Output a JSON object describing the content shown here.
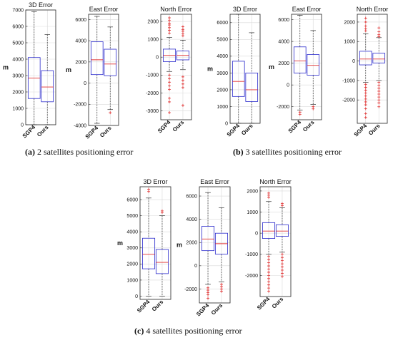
{
  "captions": [
    {
      "letter": "(a)",
      "text": " 2 satellites positioning error"
    },
    {
      "letter": "(b)",
      "text": " 3 satellites positioning error"
    },
    {
      "letter": "(c)",
      "text": " 4 satellites positioning error"
    }
  ],
  "colors": {
    "box": "#2a2acc",
    "median": "#e03030",
    "outlier": "#e03030",
    "grid": "#d9d9d9"
  },
  "chart_data": [
    {
      "group": "a",
      "type": "boxplot",
      "title": "3D Error",
      "ylabel": "m",
      "categories": [
        "SGP4",
        "Ours"
      ],
      "ylim": [
        0,
        7000
      ],
      "yticks": [
        0,
        1000,
        2000,
        3000,
        4000,
        5000,
        6000,
        7000
      ],
      "boxes": [
        {
          "min": 0,
          "q1": 1600,
          "median": 2850,
          "q3": 4100,
          "max": 6900,
          "outliers": []
        },
        {
          "min": 0,
          "q1": 1400,
          "median": 2300,
          "q3": 3300,
          "max": 5500,
          "outliers": []
        }
      ]
    },
    {
      "group": "a",
      "type": "boxplot",
      "title": "East Error",
      "ylabel": "m",
      "categories": [
        "SGP4",
        "Ours"
      ],
      "ylim": [
        -4000,
        6500
      ],
      "yticks": [
        -4000,
        -2000,
        0,
        2000,
        4000,
        6000
      ],
      "boxes": [
        {
          "min": -3800,
          "q1": 800,
          "median": 2200,
          "q3": 3900,
          "max": 6300,
          "outliers": []
        },
        {
          "min": -2500,
          "q1": 700,
          "median": 1800,
          "q3": 3200,
          "max": 5300,
          "outliers": [
            -2800
          ]
        }
      ]
    },
    {
      "group": "a",
      "type": "boxplot",
      "title": "North Error",
      "ylabel": "",
      "categories": [
        "SGP4",
        "Ours"
      ],
      "ylim": [
        -3500,
        2400
      ],
      "yticks": [
        -3000,
        -2000,
        -1000,
        0,
        1000,
        2000
      ],
      "boxes": [
        {
          "min": -800,
          "q1": -250,
          "median": 100,
          "q3": 450,
          "max": 1100,
          "outliers": [
            2200,
            2050,
            1900,
            1800,
            1650,
            1500,
            1350,
            -1000,
            -1200,
            -1400,
            -1600,
            -1800,
            -2300,
            -2500,
            -3100
          ]
        },
        {
          "min": -700,
          "q1": -150,
          "median": 100,
          "q3": 350,
          "max": 950,
          "outliers": [
            1700,
            1550,
            1450,
            1300,
            1200,
            -1100,
            -1300,
            -1500,
            -1700,
            -2700
          ]
        }
      ]
    },
    {
      "group": "b",
      "type": "boxplot",
      "title": "3D Error",
      "ylabel": "m",
      "categories": [
        "SGP4",
        "Ours"
      ],
      "ylim": [
        0,
        6500
      ],
      "yticks": [
        0,
        1000,
        2000,
        3000,
        4000,
        5000,
        6000
      ],
      "boxes": [
        {
          "min": 0,
          "q1": 1600,
          "median": 2500,
          "q3": 3700,
          "max": 6500,
          "outliers": []
        },
        {
          "min": 0,
          "q1": 1300,
          "median": 2000,
          "q3": 3000,
          "max": 5400,
          "outliers": []
        }
      ]
    },
    {
      "group": "b",
      "type": "boxplot",
      "title": "East Error",
      "ylabel": "m",
      "categories": [
        "SGP4",
        "Ours"
      ],
      "ylim": [
        -3200,
        6500
      ],
      "yticks": [
        -2000,
        0,
        2000,
        4000,
        6000
      ],
      "boxes": [
        {
          "min": -2300,
          "q1": 1100,
          "median": 2200,
          "q3": 3500,
          "max": 6400,
          "outliers": [
            -2500,
            -2700
          ]
        },
        {
          "min": -1800,
          "q1": 900,
          "median": 1800,
          "q3": 2800,
          "max": 5000,
          "outliers": [
            -2000,
            -2200
          ]
        }
      ]
    },
    {
      "group": "b",
      "type": "boxplot",
      "title": "North Error",
      "ylabel": "",
      "categories": [
        "SGP4",
        "Ours"
      ],
      "ylim": [
        -3200,
        2400
      ],
      "yticks": [
        -2000,
        -1000,
        0,
        1000,
        2000
      ],
      "boxes": [
        {
          "min": -1100,
          "q1": -200,
          "median": 100,
          "q3": 500,
          "max": 1400,
          "outliers": [
            2200,
            2000,
            1800,
            1650,
            1550,
            -1200,
            -1350,
            -1500,
            -1650,
            -1800,
            -1950,
            -2100,
            -2250,
            -2450,
            -2700,
            -2900
          ]
        },
        {
          "min": -1000,
          "q1": -100,
          "median": 100,
          "q3": 400,
          "max": 1200,
          "outliers": [
            1700,
            1500,
            1350,
            1250,
            -1100,
            -1250,
            -1400,
            -1550,
            -1700,
            -1850,
            -2000,
            -2150,
            -2350
          ]
        }
      ]
    },
    {
      "group": "c",
      "type": "boxplot",
      "title": "3D Error",
      "ylabel": "m",
      "categories": [
        "SGP4",
        "Ours"
      ],
      "ylim": [
        -200,
        6800
      ],
      "yticks": [
        0,
        1000,
        2000,
        3000,
        4000,
        5000,
        6000
      ],
      "boxes": [
        {
          "min": 0,
          "q1": 1700,
          "median": 2600,
          "q3": 3600,
          "max": 6100,
          "outliers": [
            6500,
            6650
          ]
        },
        {
          "min": 0,
          "q1": 1400,
          "median": 2100,
          "q3": 2900,
          "max": 5000,
          "outliers": [
            5200,
            5300
          ]
        }
      ]
    },
    {
      "group": "c",
      "type": "boxplot",
      "title": "East Error",
      "ylabel": "m",
      "categories": [
        "SGP4",
        "Ours"
      ],
      "ylim": [
        -3200,
        6800
      ],
      "yticks": [
        -2000,
        0,
        2000,
        4000,
        6000
      ],
      "boxes": [
        {
          "min": -1600,
          "q1": 1300,
          "median": 2300,
          "q3": 3400,
          "max": 6300,
          "outliers": [
            -1900,
            -2100,
            -2300,
            -2500,
            -2800
          ]
        },
        {
          "min": -1400,
          "q1": 1000,
          "median": 1900,
          "q3": 2800,
          "max": 5000,
          "outliers": [
            -1600,
            -1800,
            -2000,
            -2200
          ]
        }
      ]
    },
    {
      "group": "c",
      "type": "boxplot",
      "title": "North Error",
      "ylabel": "",
      "categories": [
        "SGP4",
        "Ours"
      ],
      "ylim": [
        -3000,
        2200
      ],
      "yticks": [
        -2000,
        -1000,
        0,
        1000,
        2000
      ],
      "boxes": [
        {
          "min": -1000,
          "q1": -250,
          "median": 100,
          "q3": 500,
          "max": 1500,
          "outliers": [
            1900,
            1800,
            1700,
            -1100,
            -1250,
            -1400,
            -1550,
            -1700,
            -1850,
            -2000,
            -2150,
            -2300,
            -2450,
            -2600,
            -2750
          ]
        },
        {
          "min": -900,
          "q1": -150,
          "median": 100,
          "q3": 400,
          "max": 1200,
          "outliers": [
            1400,
            1300,
            -1000,
            -1150,
            -1300,
            -1450,
            -1600,
            -1750,
            -1900,
            -2050
          ]
        }
      ]
    }
  ]
}
